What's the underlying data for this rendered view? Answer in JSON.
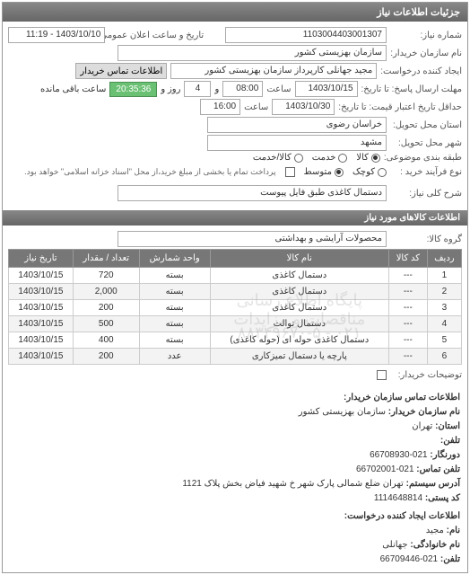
{
  "panel_title": "جزئیات اطلاعات نیاز",
  "fields": {
    "request_no_label": "شماره نیاز:",
    "request_no": "1103004403001307",
    "announce_label": "تاریخ و ساعت اعلان عمومی:",
    "announce": "1403/10/10 - 11:19",
    "buyer_label": "نام سازمان خریدار:",
    "buyer": "سازمان بهزیستی کشور",
    "creator_label": "ایجاد کننده درخواست:",
    "creator": "مجید جهانلی کارپرداز سازمان بهزیستی کشور",
    "contact_btn": "اطلاعات تماس خریدار",
    "deadline_label": "مهلت ارسال پاسخ: تا تاریخ:",
    "deadline_date": "1403/10/15",
    "deadline_time_label": "ساعت",
    "deadline_time": "08:00",
    "days_label": "و",
    "days": "4",
    "days_suffix": "روز و",
    "remain_time": "20:35:36",
    "remain_suffix": "ساعت باقی مانده",
    "validity_label": "حداقل تاریخ اعتبار قیمت: تا تاریخ:",
    "validity_date": "1403/10/30",
    "validity_time": "16:00",
    "province_label": "استان محل تحویل:",
    "province": "خراسان رضوی",
    "city_label": "شهر محل تحویل:",
    "city": "مشهد",
    "category_label": "طبقه بندی موضوعی:",
    "cat_goods": "کالا",
    "cat_service": "خدمت",
    "cat_both": "کالا/خدمت",
    "process_label": "نوع فرآیند خرید :",
    "proc_small": "کوچک",
    "proc_medium": "متوسط",
    "proc_note": "پرداخت تمام یا بخشی از مبلغ خرید،از محل \"اسناد خزانه اسلامی\" خواهد بود.",
    "desc_label": "شرح کلی نیاز:",
    "desc": "دستمال کاغذی طبق فایل پیوست",
    "goods_header": "اطلاعات کالاهای مورد نیاز",
    "group_label": "گروه کالا:",
    "group": "محصولات آرایشی و بهداشتی",
    "buyer_notes_label": "توضیحات خریدار:"
  },
  "table": {
    "columns": [
      "ردیف",
      "کد کالا",
      "نام کالا",
      "واحد شمارش",
      "تعداد / مقدار",
      "تاریخ نیاز"
    ],
    "rows": [
      [
        "1",
        "---",
        "دستمال کاغذی",
        "بسته",
        "720",
        "1403/10/15"
      ],
      [
        "2",
        "---",
        "دستمال کاغذی",
        "بسته",
        "2,000",
        "1403/10/15"
      ],
      [
        "3",
        "---",
        "دستمال کاغذی",
        "بسته",
        "200",
        "1403/10/15"
      ],
      [
        "4",
        "---",
        "دستمال توالت",
        "بسته",
        "500",
        "1403/10/15"
      ],
      [
        "5",
        "---",
        "دستمال کاغذی حوله ای (حوله کاغذی)",
        "بسته",
        "400",
        "1403/10/15"
      ],
      [
        "6",
        "---",
        "پارچه یا دستمال تمیزکاری",
        "عدد",
        "200",
        "1403/10/15"
      ]
    ],
    "watermark1": "پایگاه اطلاع رسانی مناقصات و مزایدات",
    "watermark2": "۰۲۱ - ۸۸۳۴۹۶۷۰-۵"
  },
  "footer": {
    "header": "اطلاعات تماس سازمان خریدار:",
    "org_label": "نام سازمان خریدار:",
    "org": "سازمان بهزیستی کشور",
    "prov_label": "استان:",
    "prov": "تهران",
    "tel_label": "تلفن:",
    "tel": "",
    "fax_label": "دورنگار:",
    "fax": "021-66708930",
    "post_label": "تلفن تماس:",
    "post": "021-66702001",
    "addr_label": "آدرس سیستم:",
    "addr": "تهران ضلع شمالی پارک شهر خ شهید فیاض بخش پلاک 1121",
    "zip_label": "کد پستی:",
    "zip": "1114648814",
    "creator_header": "اطلاعات ایجاد کننده درخواست:",
    "name_label": "نام:",
    "name": "مجید",
    "family_label": "نام خانوادگی:",
    "family": "جهانلی",
    "tel2_label": "تلفن:",
    "tel2": "021-66709446"
  }
}
